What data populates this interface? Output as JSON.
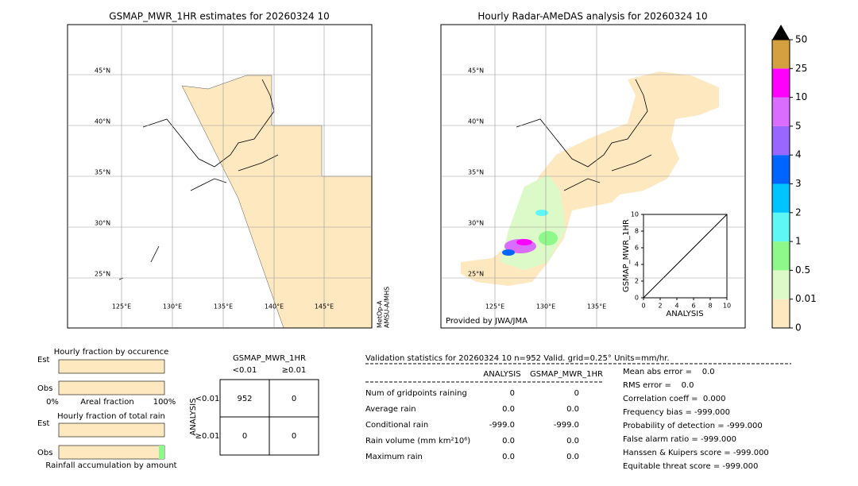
{
  "left_map": {
    "title": "GSMAP_MWR_1HR estimates for 20260324 10",
    "lat_labels": [
      "45°N",
      "40°N",
      "35°N",
      "30°N",
      "25°N"
    ],
    "lon_labels": [
      "125°E",
      "130°E",
      "135°E",
      "140°E",
      "145°E"
    ],
    "satellite": "MetOp-A",
    "sensor": "AMSU-A/MHS"
  },
  "right_map": {
    "title": "Hourly Radar-AMeDAS analysis for 20260324 10",
    "lat_labels": [
      "45°N",
      "40°N",
      "35°N",
      "30°N",
      "25°N"
    ],
    "lon_labels": [
      "125°E",
      "130°E",
      "135°E"
    ],
    "credit": "Provided by JWA/JMA"
  },
  "colorbar": {
    "labels": [
      "0",
      "0.01",
      "0.5",
      "1",
      "2",
      "3",
      "4",
      "5",
      "10",
      "25",
      "50"
    ],
    "colors": [
      "#fde8c0",
      "#dcf9c8",
      "#8ef88a",
      "#5ef7f5",
      "#00c4ff",
      "#0064ff",
      "#9966ff",
      "#da6cff",
      "#ff00ff",
      "#d4a040"
    ]
  },
  "inset": {
    "x_label": "ANALYSIS",
    "y_label": "GSMAP_MWR_1HR",
    "ticks": [
      0,
      2,
      4,
      6,
      8,
      10
    ]
  },
  "fraction": {
    "occurrence_title": "Hourly fraction by occurence",
    "total_title": "Hourly fraction of total rain",
    "rows": [
      "Est",
      "Obs"
    ],
    "axis_left": "0%",
    "axis_mid": "Areal fraction",
    "axis_right": "100%",
    "footer": "Rainfall accumulation by amount",
    "occurrence": [
      100,
      100
    ],
    "total": [
      100,
      100
    ]
  },
  "contingency": {
    "title": "GSMAP_MWR_1HR",
    "columns": [
      "<0.01",
      "≥0.01"
    ],
    "side": "ANALYSIS",
    "rows": [
      "<0.01",
      "≥0.01"
    ],
    "cells": [
      [
        952,
        0
      ],
      [
        0,
        0
      ]
    ]
  },
  "validation": {
    "title": "Validation statistics for 20260324 10  n=952 Valid. grid=0.25° Units=mm/hr.",
    "columns": [
      "ANALYSIS",
      "GSMAP_MWR_1HR"
    ],
    "rows": [
      [
        "Num of gridpoints raining",
        "0",
        "0"
      ],
      [
        "Average rain",
        "0.0",
        "0.0"
      ],
      [
        "Conditional rain",
        "-999.0",
        "-999.0"
      ],
      [
        "Rain volume (mm km²10⁶)",
        "0.0",
        "0.0"
      ],
      [
        "Maximum rain",
        "0.0",
        "0.0"
      ]
    ],
    "scores": [
      "Mean abs error =    0.0",
      "RMS error =    0.0",
      "Correlation coeff =  0.000",
      "Frequency bias = -999.000",
      "Probability of detection = -999.000",
      "False alarm ratio = -999.000",
      "Hanssen & Kuipers score = -999.000",
      "Equitable threat score = -999.000"
    ]
  }
}
